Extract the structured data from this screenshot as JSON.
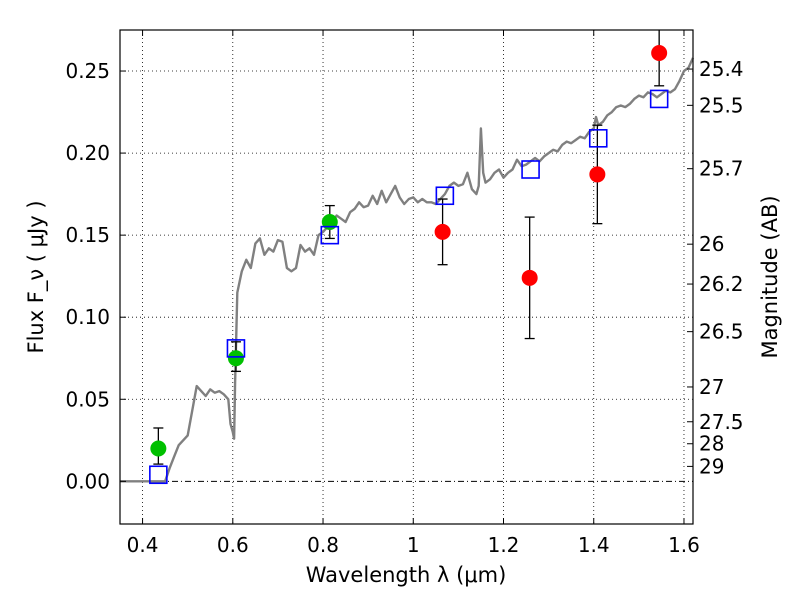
{
  "chart_data": {
    "type": "scatter",
    "xlabel": "Wavelength  λ (μm)",
    "ylabel": "Flux  F_ν  ( μJy )",
    "y2label": "Magnitude (AB)",
    "xlim": [
      0.35,
      1.62
    ],
    "ylim": [
      -0.026,
      0.275
    ],
    "x_ticks": [
      0.4,
      0.6,
      0.8,
      1.0,
      1.2,
      1.4,
      1.6
    ],
    "x_tick_labels": [
      "0.4",
      "0.6",
      "0.8",
      "1",
      "1.2",
      "1.4",
      "1.6"
    ],
    "y_ticks": [
      0.0,
      0.05,
      0.1,
      0.15,
      0.2,
      0.25
    ],
    "y_tick_labels": [
      "0.00",
      "0.05",
      "0.10",
      "0.15",
      "0.20",
      "0.25"
    ],
    "mag_ticks": [
      {
        "label": "25.4",
        "flux": 0.2512
      },
      {
        "label": "25.5",
        "flux": 0.2291
      },
      {
        "label": "25.7",
        "flux": 0.1905
      },
      {
        "label": "26",
        "flux": 0.1445
      },
      {
        "label": "26.2",
        "flux": 0.1202
      },
      {
        "label": "26.5",
        "flux": 0.0912
      },
      {
        "label": "27",
        "flux": 0.0575
      },
      {
        "label": "27.5",
        "flux": 0.0363
      },
      {
        "label": "28",
        "flux": 0.0229
      },
      {
        "label": "29",
        "flux": 0.0091
      }
    ],
    "grid": true,
    "model_spectrum": {
      "color": "#808080",
      "x": [
        0.35,
        0.38,
        0.41,
        0.44,
        0.45,
        0.46,
        0.47,
        0.48,
        0.49,
        0.5,
        0.51,
        0.52,
        0.53,
        0.54,
        0.55,
        0.56,
        0.57,
        0.58,
        0.59,
        0.595,
        0.6,
        0.603,
        0.605,
        0.61,
        0.62,
        0.63,
        0.64,
        0.65,
        0.66,
        0.67,
        0.68,
        0.69,
        0.7,
        0.71,
        0.72,
        0.73,
        0.74,
        0.75,
        0.76,
        0.77,
        0.78,
        0.79,
        0.8,
        0.81,
        0.82,
        0.83,
        0.84,
        0.85,
        0.86,
        0.87,
        0.88,
        0.89,
        0.9,
        0.91,
        0.92,
        0.93,
        0.94,
        0.95,
        0.96,
        0.97,
        0.98,
        0.99,
        1.0,
        1.01,
        1.02,
        1.03,
        1.04,
        1.05,
        1.06,
        1.07,
        1.08,
        1.09,
        1.1,
        1.11,
        1.12,
        1.13,
        1.14,
        1.145,
        1.15,
        1.155,
        1.16,
        1.17,
        1.18,
        1.19,
        1.2,
        1.21,
        1.22,
        1.23,
        1.24,
        1.25,
        1.26,
        1.27,
        1.28,
        1.29,
        1.3,
        1.31,
        1.32,
        1.33,
        1.34,
        1.35,
        1.36,
        1.37,
        1.38,
        1.39,
        1.4,
        1.405,
        1.41,
        1.42,
        1.43,
        1.44,
        1.45,
        1.46,
        1.47,
        1.48,
        1.49,
        1.5,
        1.51,
        1.52,
        1.53,
        1.54,
        1.55,
        1.56,
        1.57,
        1.58,
        1.59,
        1.6,
        1.61,
        1.62
      ],
      "y": [
        0.0,
        0.0,
        0.0,
        0.0,
        0.0,
        0.008,
        0.015,
        0.022,
        0.025,
        0.028,
        0.043,
        0.058,
        0.055,
        0.052,
        0.056,
        0.054,
        0.055,
        0.053,
        0.05,
        0.035,
        0.03,
        0.026,
        0.06,
        0.115,
        0.128,
        0.135,
        0.13,
        0.145,
        0.148,
        0.138,
        0.142,
        0.14,
        0.147,
        0.146,
        0.13,
        0.128,
        0.13,
        0.144,
        0.14,
        0.142,
        0.138,
        0.15,
        0.152,
        0.155,
        0.158,
        0.162,
        0.16,
        0.158,
        0.164,
        0.166,
        0.17,
        0.167,
        0.168,
        0.174,
        0.169,
        0.177,
        0.17,
        0.175,
        0.18,
        0.173,
        0.169,
        0.172,
        0.173,
        0.17,
        0.172,
        0.17,
        0.17,
        0.169,
        0.172,
        0.175,
        0.18,
        0.182,
        0.18,
        0.181,
        0.188,
        0.178,
        0.175,
        0.18,
        0.215,
        0.188,
        0.182,
        0.184,
        0.188,
        0.19,
        0.185,
        0.188,
        0.19,
        0.196,
        0.192,
        0.193,
        0.195,
        0.197,
        0.195,
        0.198,
        0.2,
        0.202,
        0.201,
        0.205,
        0.207,
        0.206,
        0.208,
        0.21,
        0.209,
        0.213,
        0.215,
        0.222,
        0.217,
        0.219,
        0.223,
        0.225,
        0.228,
        0.229,
        0.228,
        0.23,
        0.233,
        0.235,
        0.234,
        0.237,
        0.236,
        0.234,
        0.236,
        0.238,
        0.237,
        0.239,
        0.244,
        0.25,
        0.252,
        0.258
      ]
    },
    "series": [
      {
        "marker": "circle",
        "color": "#00c000",
        "x": [
          0.435,
          0.607,
          0.815
        ],
        "y": [
          0.02,
          0.075,
          0.158
        ],
        "err_low": [
          0.0095,
          0.008,
          0.01
        ],
        "err_high": [
          0.0125,
          0.01,
          0.01
        ]
      },
      {
        "marker": "circle",
        "color": "#ff0000",
        "x": [
          1.065,
          1.258,
          1.408,
          1.545
        ],
        "y": [
          0.152,
          0.124,
          0.187,
          0.261
        ],
        "err_low": [
          0.02,
          0.037,
          0.03,
          0.02
        ],
        "err_high": [
          0.02,
          0.037,
          0.03,
          0.025
        ]
      },
      {
        "marker": "open-square",
        "color": "#0000ff",
        "x": [
          0.435,
          0.607,
          0.815,
          1.07,
          1.26,
          1.41,
          1.545
        ],
        "y": [
          0.004,
          0.081,
          0.15,
          0.174,
          0.19,
          0.209,
          0.233
        ]
      }
    ]
  }
}
